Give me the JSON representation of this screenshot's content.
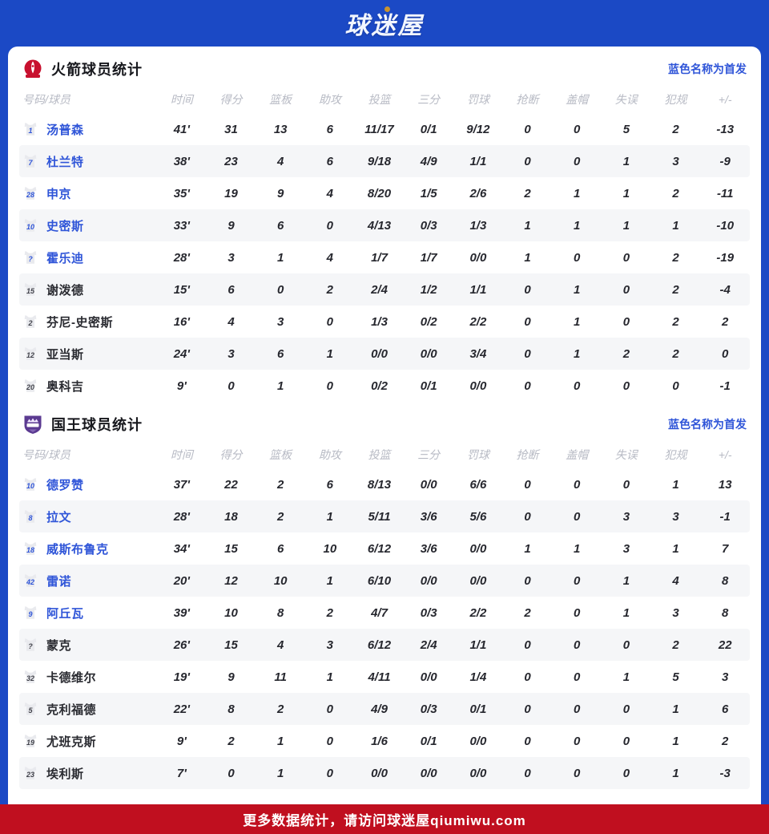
{
  "page": {
    "logo_text": "球迷屋"
  },
  "theme": {
    "page-blue": "#1b49c5",
    "link-blue": "#2f55d8",
    "footer-red": "#c00f1f",
    "header-gray": "#b7bac4",
    "text-dark": "#26272e",
    "alt-row": "#f5f6f8",
    "jersey-gray": "#e9eaee",
    "rockets-red": "#c8102e",
    "kings-purple": "#5b3a91",
    "gold": "#c9932f"
  },
  "legend": "蓝色名称为首发",
  "columns": [
    "号码/球员",
    "时间",
    "得分",
    "篮板",
    "助攻",
    "投篮",
    "三分",
    "罚球",
    "抢断",
    "盖帽",
    "失误",
    "犯规",
    "+/-"
  ],
  "teams": [
    {
      "title": "火箭球员统计",
      "logo": "rockets-logo",
      "players": [
        {
          "number": "1",
          "name": "汤普森",
          "starter": true,
          "stats": [
            "41'",
            "31",
            "13",
            "6",
            "11/17",
            "0/1",
            "9/12",
            "0",
            "0",
            "5",
            "2",
            "-13"
          ]
        },
        {
          "number": "7",
          "name": "杜兰特",
          "starter": true,
          "stats": [
            "38'",
            "23",
            "4",
            "6",
            "9/18",
            "4/9",
            "1/1",
            "0",
            "0",
            "1",
            "3",
            "-9"
          ]
        },
        {
          "number": "28",
          "name": "申京",
          "starter": true,
          "stats": [
            "35'",
            "19",
            "9",
            "4",
            "8/20",
            "1/5",
            "2/6",
            "2",
            "1",
            "1",
            "2",
            "-11"
          ]
        },
        {
          "number": "10",
          "name": "史密斯",
          "starter": true,
          "stats": [
            "33'",
            "9",
            "6",
            "0",
            "4/13",
            "0/3",
            "1/3",
            "1",
            "1",
            "1",
            "1",
            "-10"
          ]
        },
        {
          "number": "?",
          "name": "霍乐迪",
          "starter": true,
          "stats": [
            "28'",
            "3",
            "1",
            "4",
            "1/7",
            "1/7",
            "0/0",
            "1",
            "0",
            "0",
            "2",
            "-19"
          ]
        },
        {
          "number": "15",
          "name": "谢泼德",
          "starter": false,
          "stats": [
            "15'",
            "6",
            "0",
            "2",
            "2/4",
            "1/2",
            "1/1",
            "0",
            "1",
            "0",
            "2",
            "-4"
          ]
        },
        {
          "number": "2",
          "name": "芬尼-史密斯",
          "starter": false,
          "stats": [
            "16'",
            "4",
            "3",
            "0",
            "1/3",
            "0/2",
            "2/2",
            "0",
            "1",
            "0",
            "2",
            "2"
          ]
        },
        {
          "number": "12",
          "name": "亚当斯",
          "starter": false,
          "stats": [
            "24'",
            "3",
            "6",
            "1",
            "0/0",
            "0/0",
            "3/4",
            "0",
            "1",
            "2",
            "2",
            "0"
          ]
        },
        {
          "number": "20",
          "name": "奥科吉",
          "starter": false,
          "stats": [
            "9'",
            "0",
            "1",
            "0",
            "0/2",
            "0/1",
            "0/0",
            "0",
            "0",
            "0",
            "0",
            "-1"
          ]
        }
      ]
    },
    {
      "title": "国王球员统计",
      "logo": "kings-logo",
      "players": [
        {
          "number": "10",
          "name": "德罗赞",
          "starter": true,
          "stats": [
            "37'",
            "22",
            "2",
            "6",
            "8/13",
            "0/0",
            "6/6",
            "0",
            "0",
            "0",
            "1",
            "13"
          ]
        },
        {
          "number": "8",
          "name": "拉文",
          "starter": true,
          "stats": [
            "28'",
            "18",
            "2",
            "1",
            "5/11",
            "3/6",
            "5/6",
            "0",
            "0",
            "3",
            "3",
            "-1"
          ]
        },
        {
          "number": "18",
          "name": "威斯布鲁克",
          "starter": true,
          "stats": [
            "34'",
            "15",
            "6",
            "10",
            "6/12",
            "3/6",
            "0/0",
            "1",
            "1",
            "3",
            "1",
            "7"
          ]
        },
        {
          "number": "42",
          "name": "雷诺",
          "starter": true,
          "stats": [
            "20'",
            "12",
            "10",
            "1",
            "6/10",
            "0/0",
            "0/0",
            "0",
            "0",
            "1",
            "4",
            "8"
          ]
        },
        {
          "number": "9",
          "name": "阿丘瓦",
          "starter": true,
          "stats": [
            "39'",
            "10",
            "8",
            "2",
            "4/7",
            "0/3",
            "2/2",
            "2",
            "0",
            "1",
            "3",
            "8"
          ]
        },
        {
          "number": "?",
          "name": "蒙克",
          "starter": false,
          "stats": [
            "26'",
            "15",
            "4",
            "3",
            "6/12",
            "2/4",
            "1/1",
            "0",
            "0",
            "0",
            "2",
            "22"
          ]
        },
        {
          "number": "32",
          "name": "卡德维尔",
          "starter": false,
          "stats": [
            "19'",
            "9",
            "11",
            "1",
            "4/11",
            "0/0",
            "1/4",
            "0",
            "0",
            "1",
            "5",
            "3"
          ]
        },
        {
          "number": "5",
          "name": "克利福德",
          "starter": false,
          "stats": [
            "22'",
            "8",
            "2",
            "0",
            "4/9",
            "0/3",
            "0/1",
            "0",
            "0",
            "0",
            "1",
            "6"
          ]
        },
        {
          "number": "19",
          "name": "尤班克斯",
          "starter": false,
          "stats": [
            "9'",
            "2",
            "1",
            "0",
            "1/6",
            "0/1",
            "0/0",
            "0",
            "0",
            "0",
            "1",
            "2"
          ]
        },
        {
          "number": "23",
          "name": "埃利斯",
          "starter": false,
          "stats": [
            "7'",
            "0",
            "1",
            "0",
            "0/0",
            "0/0",
            "0/0",
            "0",
            "0",
            "0",
            "1",
            "-3"
          ]
        }
      ]
    }
  ],
  "footer": {
    "text": "更多数据统计，请访问球迷屋qiumiwu.com"
  }
}
